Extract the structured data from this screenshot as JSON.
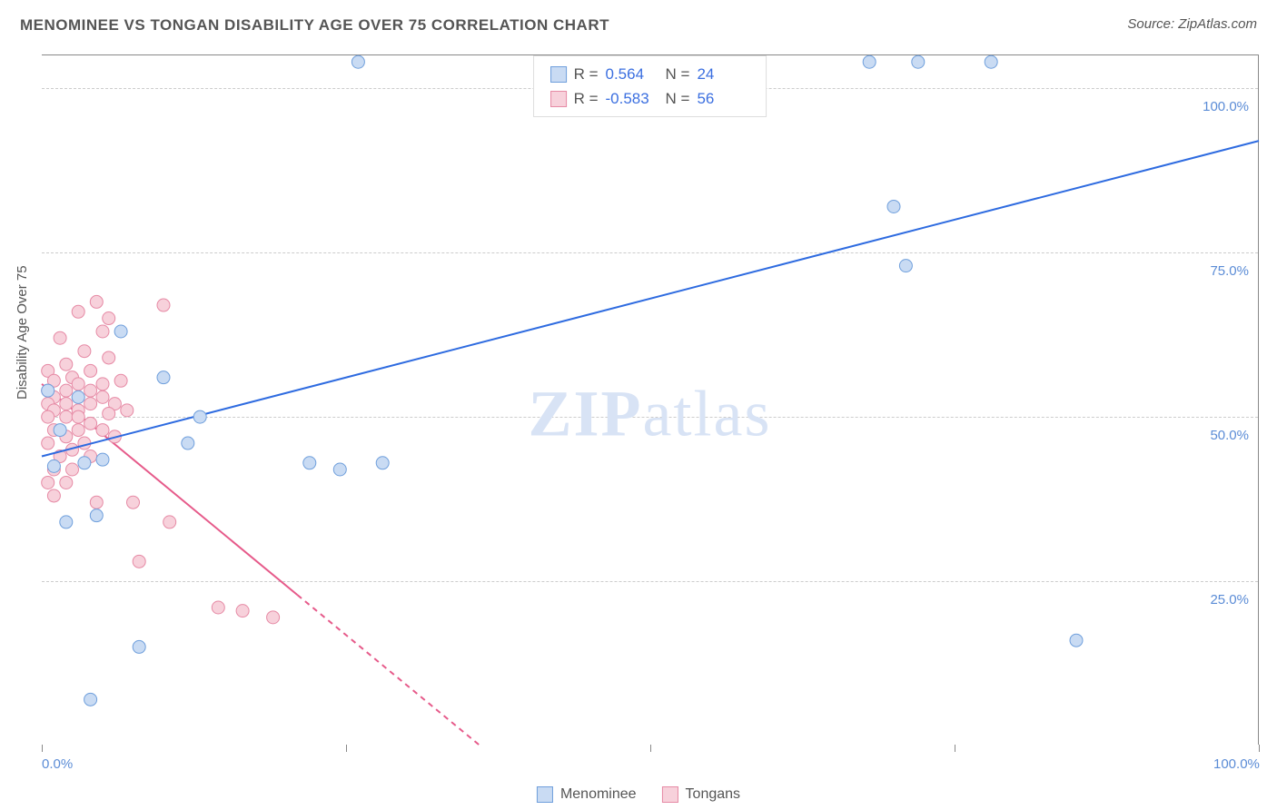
{
  "header": {
    "title": "MENOMINEE VS TONGAN DISABILITY AGE OVER 75 CORRELATION CHART",
    "source_prefix": "Source: ",
    "source_name": "ZipAtlas.com"
  },
  "chart": {
    "type": "scatter",
    "y_axis_label": "Disability Age Over 75",
    "xlim": [
      0,
      100
    ],
    "ylim": [
      0,
      105
    ],
    "x_ticks": [
      0,
      25,
      50,
      75,
      100
    ],
    "x_tick_labels": {
      "0": "0.0%",
      "100": "100.0%"
    },
    "y_gridlines": [
      25,
      50,
      75,
      100
    ],
    "y_tick_labels": {
      "25": "25.0%",
      "50": "50.0%",
      "75": "75.0%",
      "100": "100.0%"
    },
    "background_color": "#ffffff",
    "grid_color": "#cccccc",
    "axis_label_color": "#5b8cd6",
    "watermark_text_bold": "ZIP",
    "watermark_text_rest": "atlas",
    "watermark_color": "#d8e3f5",
    "series": {
      "menominee": {
        "label": "Menominee",
        "marker_color_fill": "#c9dbf3",
        "marker_color_stroke": "#6f9fdc",
        "marker_radius": 7,
        "trend_color": "#2e6be0",
        "trend_width": 2,
        "trend_start": {
          "x": 0,
          "y": 44
        },
        "trend_end": {
          "x": 100,
          "y": 92
        },
        "trend_dash_start_x": 0,
        "R": "0.564",
        "N": "24",
        "points": [
          {
            "x": 26,
            "y": 104
          },
          {
            "x": 68,
            "y": 104
          },
          {
            "x": 72,
            "y": 104
          },
          {
            "x": 78,
            "y": 104
          },
          {
            "x": 70,
            "y": 82
          },
          {
            "x": 71,
            "y": 73
          },
          {
            "x": 6.5,
            "y": 63
          },
          {
            "x": 10,
            "y": 56
          },
          {
            "x": 3,
            "y": 53
          },
          {
            "x": 0.5,
            "y": 54
          },
          {
            "x": 13,
            "y": 50
          },
          {
            "x": 12,
            "y": 46
          },
          {
            "x": 3.5,
            "y": 43
          },
          {
            "x": 5,
            "y": 43.5
          },
          {
            "x": 1,
            "y": 42.5
          },
          {
            "x": 22,
            "y": 43
          },
          {
            "x": 24.5,
            "y": 42
          },
          {
            "x": 28,
            "y": 43
          },
          {
            "x": 2,
            "y": 34
          },
          {
            "x": 4.5,
            "y": 35
          },
          {
            "x": 8,
            "y": 15
          },
          {
            "x": 85,
            "y": 16
          },
          {
            "x": 4,
            "y": 7
          },
          {
            "x": 1.5,
            "y": 48
          }
        ]
      },
      "tongans": {
        "label": "Tongans",
        "marker_color_fill": "#f7d1db",
        "marker_color_stroke": "#e68aa5",
        "marker_radius": 7,
        "trend_color": "#e65a8a",
        "trend_width": 2,
        "trend_start": {
          "x": 0,
          "y": 55
        },
        "trend_end": {
          "x": 36,
          "y": 0
        },
        "trend_dash_start_x": 21,
        "R": "-0.583",
        "N": "56",
        "points": [
          {
            "x": 10,
            "y": 67
          },
          {
            "x": 4.5,
            "y": 67.5
          },
          {
            "x": 5.5,
            "y": 65
          },
          {
            "x": 3,
            "y": 66
          },
          {
            "x": 5,
            "y": 63
          },
          {
            "x": 1.5,
            "y": 62
          },
          {
            "x": 3.5,
            "y": 60
          },
          {
            "x": 5.5,
            "y": 59
          },
          {
            "x": 2,
            "y": 58
          },
          {
            "x": 0.5,
            "y": 57
          },
          {
            "x": 4,
            "y": 57
          },
          {
            "x": 2.5,
            "y": 56
          },
          {
            "x": 1,
            "y": 55.5
          },
          {
            "x": 3,
            "y": 55
          },
          {
            "x": 5,
            "y": 55
          },
          {
            "x": 6.5,
            "y": 55.5
          },
          {
            "x": 0.5,
            "y": 54
          },
          {
            "x": 2,
            "y": 54
          },
          {
            "x": 4,
            "y": 54
          },
          {
            "x": 1,
            "y": 53
          },
          {
            "x": 3,
            "y": 53
          },
          {
            "x": 5,
            "y": 53
          },
          {
            "x": 0.5,
            "y": 52
          },
          {
            "x": 2,
            "y": 52
          },
          {
            "x": 4,
            "y": 52
          },
          {
            "x": 6,
            "y": 52
          },
          {
            "x": 1,
            "y": 51
          },
          {
            "x": 3,
            "y": 51
          },
          {
            "x": 5.5,
            "y": 50.5
          },
          {
            "x": 7,
            "y": 51
          },
          {
            "x": 0.5,
            "y": 50
          },
          {
            "x": 2,
            "y": 50
          },
          {
            "x": 4,
            "y": 49
          },
          {
            "x": 1,
            "y": 48
          },
          {
            "x": 3,
            "y": 48
          },
          {
            "x": 5,
            "y": 48
          },
          {
            "x": 2,
            "y": 47
          },
          {
            "x": 0.5,
            "y": 46
          },
          {
            "x": 3.5,
            "y": 46
          },
          {
            "x": 1.5,
            "y": 44
          },
          {
            "x": 4,
            "y": 44
          },
          {
            "x": 1,
            "y": 42
          },
          {
            "x": 2.5,
            "y": 42
          },
          {
            "x": 0.5,
            "y": 40
          },
          {
            "x": 2,
            "y": 40
          },
          {
            "x": 1,
            "y": 38
          },
          {
            "x": 4.5,
            "y": 37
          },
          {
            "x": 7.5,
            "y": 37
          },
          {
            "x": 10.5,
            "y": 34
          },
          {
            "x": 8,
            "y": 28
          },
          {
            "x": 14.5,
            "y": 21
          },
          {
            "x": 16.5,
            "y": 20.5
          },
          {
            "x": 19,
            "y": 19.5
          },
          {
            "x": 2.5,
            "y": 45
          },
          {
            "x": 6,
            "y": 47
          },
          {
            "x": 3,
            "y": 50
          }
        ]
      }
    },
    "legend_top": {
      "rows": [
        {
          "swatch_fill": "#c9dbf3",
          "swatch_stroke": "#6f9fdc",
          "r_label": "R =",
          "r_value": "0.564",
          "n_label": "N =",
          "n_value": "24"
        },
        {
          "swatch_fill": "#f7d1db",
          "swatch_stroke": "#e68aa5",
          "r_label": "R =",
          "r_value": "-0.583",
          "n_label": "N =",
          "n_value": "56"
        }
      ]
    },
    "legend_bottom": {
      "items": [
        {
          "swatch_fill": "#c9dbf3",
          "swatch_stroke": "#6f9fdc",
          "label": "Menominee"
        },
        {
          "swatch_fill": "#f7d1db",
          "swatch_stroke": "#e68aa5",
          "label": "Tongans"
        }
      ]
    }
  }
}
